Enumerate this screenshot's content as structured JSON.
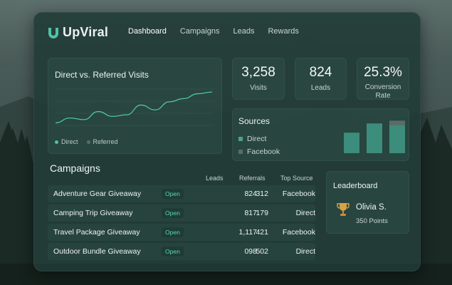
{
  "brand": {
    "name": "UpViral",
    "accent": "#4fc3a8"
  },
  "nav": {
    "items": [
      "Dashboard",
      "Campaigns",
      "Leads",
      "Rewards"
    ],
    "active": "Dashboard"
  },
  "visits_chart": {
    "title": "Direct vs. Referred Visits",
    "legend": [
      "Direct",
      "Referred"
    ],
    "chart_data": {
      "type": "line",
      "series": [
        {
          "name": "Direct",
          "values": [
            2,
            5,
            4,
            9,
            6,
            7,
            13,
            10,
            15,
            17,
            20,
            21
          ],
          "color": "#4fc3a8"
        },
        {
          "name": "Referred",
          "color": "#5a6c68",
          "values": []
        }
      ]
    }
  },
  "stats": [
    {
      "value": "3,258",
      "label": "Visits"
    },
    {
      "value": "824",
      "label": "Leads"
    },
    {
      "value": "25.3%",
      "label": "Conversion Rate"
    }
  ],
  "sources": {
    "title": "Sources",
    "items": [
      {
        "label": "Direct",
        "color": "#4fa08f"
      },
      {
        "label": "Facebook",
        "color": "#5a6c68"
      }
    ],
    "chart_data": {
      "type": "bar",
      "values": [
        60,
        87,
        95
      ],
      "overlay": [
        0,
        0,
        22
      ],
      "color": "#3f9a86"
    }
  },
  "campaigns": {
    "title": "Campaigns",
    "headers": {
      "leads": "Leads",
      "referrals": "Referrals",
      "top_source": "Top Source"
    },
    "rows": [
      {
        "name": "Adventure Gear Giveaway",
        "status": "Open",
        "leads": "824",
        "referrals": "312",
        "top_source": "Facebook"
      },
      {
        "name": "Camping Trip Giveaway",
        "status": "Open",
        "leads": "817",
        "referrals": "179",
        "top_source": "Direct"
      },
      {
        "name": "Travel Package Giveaway",
        "status": "Open",
        "leads": "1,117",
        "referrals": "421",
        "top_source": "Facebook"
      },
      {
        "name": "Outdoor Bundle Giveaway",
        "status": "Open",
        "leads": "098",
        "referrals": "502",
        "top_source": "Direct"
      }
    ]
  },
  "leaderboard": {
    "title": "Leaderboard",
    "entry": {
      "name": "Olivia S.",
      "points": "350 Points",
      "icon": "trophy-icon"
    }
  }
}
